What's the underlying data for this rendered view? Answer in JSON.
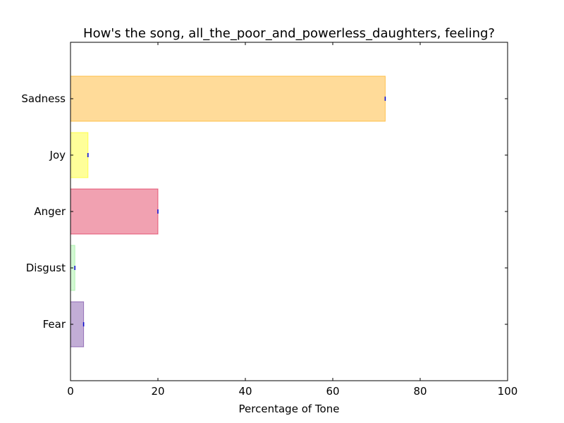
{
  "chart_data": {
    "type": "bar",
    "orientation": "horizontal",
    "title": "How's the song, all_the_poor_and_powerless_daughters, feeling?",
    "xlabel": "Percentage of Tone",
    "ylabel": "",
    "xlim": [
      0,
      100
    ],
    "xticks": [
      0,
      20,
      40,
      60,
      80,
      100
    ],
    "categories": [
      "Sadness",
      "Joy",
      "Anger",
      "Disgust",
      "Fear"
    ],
    "values": [
      72,
      4,
      20,
      1,
      3
    ],
    "colors": [
      "#FFA500",
      "#FFFF00",
      "#DC143C",
      "#90EE90",
      "#663399"
    ],
    "error_bar_color": "#0000CC",
    "grid": false,
    "legend": "none"
  }
}
